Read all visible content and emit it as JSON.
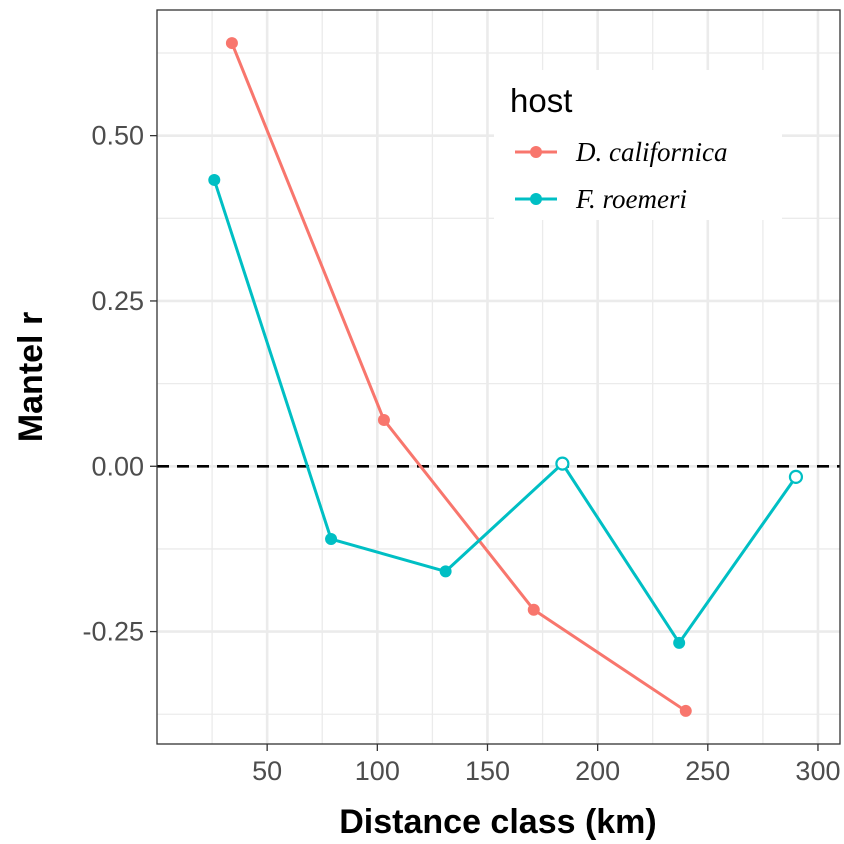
{
  "chart_data": {
    "type": "line",
    "title": "",
    "xlabel": "Distance class (km)",
    "ylabel": "Mantel r",
    "xlim": [
      0,
      310
    ],
    "ylim": [
      -0.42,
      0.69
    ],
    "xticks": [
      50,
      100,
      150,
      200,
      250,
      300
    ],
    "yticks": [
      0.5,
      0.25,
      0.0,
      -0.25
    ],
    "ytick_labels": [
      "0.50",
      "0.25",
      "0.00",
      "-0.25"
    ],
    "xtick_labels": [
      "50",
      "100",
      "150",
      "200",
      "250",
      "300"
    ],
    "grid": true,
    "reference_line": {
      "y": 0,
      "style": "dashed",
      "color": "#000000"
    },
    "legend": {
      "title": "host",
      "position": "top-right"
    },
    "series": [
      {
        "name": "D. californica",
        "color": "#F8766D",
        "points": [
          {
            "x": 34,
            "y": 0.64,
            "significant": true
          },
          {
            "x": 103,
            "y": 0.07,
            "significant": true
          },
          {
            "x": 171,
            "y": -0.217,
            "significant": true
          },
          {
            "x": 240,
            "y": -0.37,
            "significant": true
          }
        ]
      },
      {
        "name": "F. roemeri",
        "color": "#00BFC4",
        "points": [
          {
            "x": 26,
            "y": 0.433,
            "significant": true
          },
          {
            "x": 79,
            "y": -0.11,
            "significant": true
          },
          {
            "x": 131,
            "y": -0.159,
            "significant": true
          },
          {
            "x": 184,
            "y": 0.004,
            "significant": false
          },
          {
            "x": 237,
            "y": -0.267,
            "significant": true
          },
          {
            "x": 290,
            "y": -0.016,
            "significant": false
          }
        ]
      }
    ]
  }
}
